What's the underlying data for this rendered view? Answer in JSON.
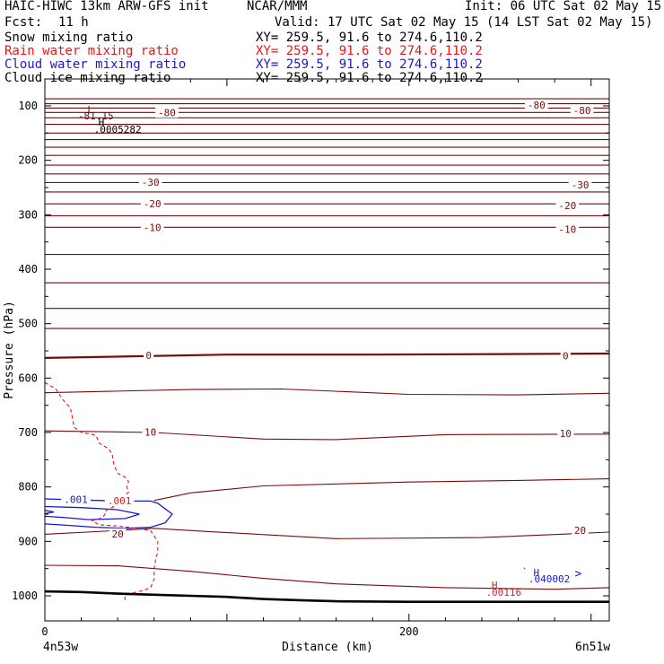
{
  "header": {
    "model": "HAIC-HIWC 13km ARW-GFS init",
    "org": "NCAR/MMM",
    "init": "Init: 06 UTC Sat 02 May 15",
    "fcst_label": "Fcst:",
    "fcst_value": "11 h",
    "valid": "Valid: 17 UTC Sat 02 May 15 (14 LST Sat 02 May 15)",
    "fields": [
      {
        "name": "Snow mixing ratio",
        "xy": "XY= 259.5, 91.6 to 274.6,110.2",
        "color": "#000000"
      },
      {
        "name": "Rain water mixing ratio",
        "xy": "XY= 259.5, 91.6 to 274.6,110.2",
        "color": "#e8161b"
      },
      {
        "name": "Cloud water mixing ratio",
        "xy": "XY= 259.5, 91.6 to 274.6,110.2",
        "color": "#1a1acb"
      },
      {
        "name": "Cloud ice mixing ratio",
        "xy": "XY= 259.5, 91.6 to 274.6,110.2",
        "color": "#000000"
      }
    ]
  },
  "chart_data": {
    "type": "line",
    "xlabel": "Distance (km)",
    "ylabel": "Pressure (hPa)",
    "xlim": [
      0,
      310
    ],
    "ylim": [
      1030,
      65
    ],
    "x_ticks": [
      0,
      200
    ],
    "y_ticks": [
      100,
      200,
      300,
      400,
      500,
      600,
      700,
      800,
      900,
      1000
    ],
    "endpoints": {
      "left": "4n53w",
      "right": "6n51w"
    },
    "colors": {
      "temperature": "#7a0a0a",
      "rain": "#e8161b",
      "cloud_water": "#1a1acb",
      "ground": "#000000"
    },
    "temperature_labels": [
      {
        "text": "-80",
        "x": 67,
        "p": 112
      },
      {
        "text": "-80",
        "x": 270,
        "p": 98
      },
      {
        "text": "-80",
        "x": 295,
        "p": 108
      },
      {
        "text": "-30",
        "x": 58,
        "p": 240
      },
      {
        "text": "-30",
        "x": 294,
        "p": 245
      },
      {
        "text": "-20",
        "x": 59,
        "p": 280
      },
      {
        "text": "-20",
        "x": 287,
        "p": 283
      },
      {
        "text": "-10",
        "x": 59,
        "p": 323
      },
      {
        "text": "-10",
        "x": 287,
        "p": 327
      },
      {
        "text": "0",
        "x": 57,
        "p": 558
      },
      {
        "text": "0",
        "x": 286,
        "p": 559
      },
      {
        "text": "10",
        "x": 58,
        "p": 699
      },
      {
        "text": "10",
        "x": 286,
        "p": 702
      },
      {
        "text": "20",
        "x": 40,
        "p": 886
      },
      {
        "text": "20",
        "x": 294,
        "p": 880
      }
    ],
    "rain_labels": [
      {
        "text": ".001",
        "x": 41,
        "p": 825
      }
    ],
    "cloud_water_labels": [
      {
        "text": ".001",
        "x": 17,
        "p": 823
      }
    ],
    "extrema": [
      {
        "text": "L",
        "x": 25,
        "p": 107,
        "color": "#7a0a0a"
      },
      {
        "text": "-81.15",
        "x": 28,
        "p": 118,
        "color": "#7a0a0a"
      },
      {
        "text": "H",
        "x": 31,
        "p": 130,
        "color": "#000000"
      },
      {
        "text": ".0005282",
        "x": 40,
        "p": 143,
        "color": "#000000"
      },
      {
        "text": "H",
        "x": 247,
        "p": 980,
        "color": "#e8161b"
      },
      {
        "text": ".00116",
        "x": 252,
        "p": 993,
        "color": "#e8161b"
      },
      {
        "text": "H",
        "x": 270,
        "p": 957,
        "color": "#1a1acb"
      },
      {
        "text": ".040002",
        "x": 277,
        "p": 969,
        "color": "#1a1acb"
      }
    ],
    "temperature_isotherms": [
      {
        "x": [
          0,
          310
        ],
        "p": [
          87,
          87
        ]
      },
      {
        "x": [
          0,
          310
        ],
        "p": [
          96,
          96
        ]
      },
      {
        "x": [
          0,
          310
        ],
        "p": [
          104,
          104
        ]
      },
      {
        "x": [
          0,
          310
        ],
        "p": [
          112,
          112
        ]
      },
      {
        "x": [
          0,
          310
        ],
        "p": [
          122,
          122
        ]
      },
      {
        "x": [
          0,
          310
        ],
        "p": [
          134,
          134
        ]
      },
      {
        "x": [
          0,
          310
        ],
        "p": [
          150,
          150
        ]
      },
      {
        "x": [
          0,
          310
        ],
        "p": [
          162,
          162
        ]
      },
      {
        "x": [
          0,
          310
        ],
        "p": [
          176,
          176
        ]
      },
      {
        "x": [
          0,
          310
        ],
        "p": [
          191,
          191
        ]
      },
      {
        "x": [
          0,
          310
        ],
        "p": [
          209,
          209
        ]
      },
      {
        "x": [
          0,
          310
        ],
        "p": [
          225,
          225
        ]
      },
      {
        "x": [
          0,
          310
        ],
        "p": [
          241,
          241
        ]
      },
      {
        "x": [
          0,
          310
        ],
        "p": [
          258,
          258
        ]
      },
      {
        "x": [
          0,
          310
        ],
        "p": [
          280,
          280
        ]
      },
      {
        "x": [
          0,
          310
        ],
        "p": [
          302,
          302
        ]
      },
      {
        "x": [
          0,
          310
        ],
        "p": [
          323,
          323
        ]
      },
      {
        "x": [
          0,
          310
        ],
        "p": [
          373,
          373
        ]
      },
      {
        "x": [
          0,
          310
        ],
        "p": [
          425,
          425
        ]
      },
      {
        "x": [
          0,
          310
        ],
        "p": [
          472,
          472
        ]
      },
      {
        "x": [
          0,
          310
        ],
        "p": [
          509,
          509
        ]
      },
      {
        "x": [
          0,
          100,
          180,
          250,
          310
        ],
        "p": [
          563,
          557,
          557,
          556,
          555
        ]
      },
      {
        "x": [
          0,
          80,
          130,
          200,
          260,
          310
        ],
        "p": [
          627,
          621,
          620,
          630,
          631,
          628
        ]
      },
      {
        "x": [
          0,
          60,
          120,
          160,
          220,
          310
        ],
        "p": [
          697,
          700,
          712,
          713,
          704,
          703
        ]
      },
      {
        "x": [
          60,
          80,
          120,
          200,
          260,
          310
        ],
        "p": [
          825,
          811,
          798,
          791,
          788,
          785
        ]
      },
      {
        "x": [
          0,
          40,
          60,
          90,
          160,
          240,
          290,
          310
        ],
        "p": [
          887,
          880,
          876,
          882,
          895,
          893,
          886,
          883
        ]
      },
      {
        "x": [
          0,
          40,
          80,
          120,
          160,
          220,
          280,
          310
        ],
        "p": [
          944,
          945,
          955,
          968,
          978,
          985,
          988,
          985
        ]
      }
    ],
    "rain_contour": {
      "x": [
        0,
        6,
        10,
        14,
        15,
        16,
        20,
        28,
        30,
        35,
        37,
        38,
        40,
        44,
        46,
        45,
        46,
        44,
        45,
        40,
        38,
        37,
        35,
        33,
        33,
        32,
        30,
        28,
        26,
        28,
        30,
        32,
        40,
        48,
        58,
        60,
        62,
        62,
        61,
        60,
        60,
        58,
        54,
        48,
        44,
        44,
        44,
        44,
        44,
        44,
        44,
        44,
        44
      ],
      "p": [
        608,
        620,
        640,
        655,
        670,
        690,
        700,
        705,
        720,
        730,
        740,
        760,
        775,
        782,
        790,
        800,
        810,
        815,
        825,
        830,
        835,
        838,
        840,
        845,
        850,
        855,
        858,
        860,
        862,
        866,
        870,
        870,
        872,
        875,
        880,
        890,
        900,
        920,
        930,
        950,
        970,
        985,
        990,
        995,
        1000,
        1002,
        1003,
        1004,
        1005,
        1006,
        1007,
        1008,
        1009
      ]
    },
    "rain_contour_drawn": [],
    "cloud_water_outer": {
      "x": [
        0,
        20,
        40,
        58,
        62,
        70,
        66,
        58,
        44,
        28,
        10,
        0
      ],
      "p": [
        822,
        824,
        826,
        826,
        830,
        850,
        866,
        874,
        876,
        874,
        870,
        868
      ]
    },
    "cloud_water_inner": {
      "x": [
        0,
        20,
        40,
        52,
        44,
        24,
        10,
        0
      ],
      "p": [
        836,
        838,
        842,
        850,
        858,
        860,
        856,
        854
      ]
    },
    "cloud_water_core": {
      "x": [
        0,
        5,
        0
      ],
      "p": [
        843,
        846,
        849
      ]
    },
    "ground": {
      "x": [
        0,
        20,
        40,
        60,
        80,
        100,
        120,
        140,
        160,
        200,
        240,
        280,
        310
      ],
      "p": [
        992,
        993,
        996,
        998,
        1000,
        1002,
        1006,
        1008,
        1010,
        1011,
        1011,
        1011,
        1011
      ]
    }
  }
}
